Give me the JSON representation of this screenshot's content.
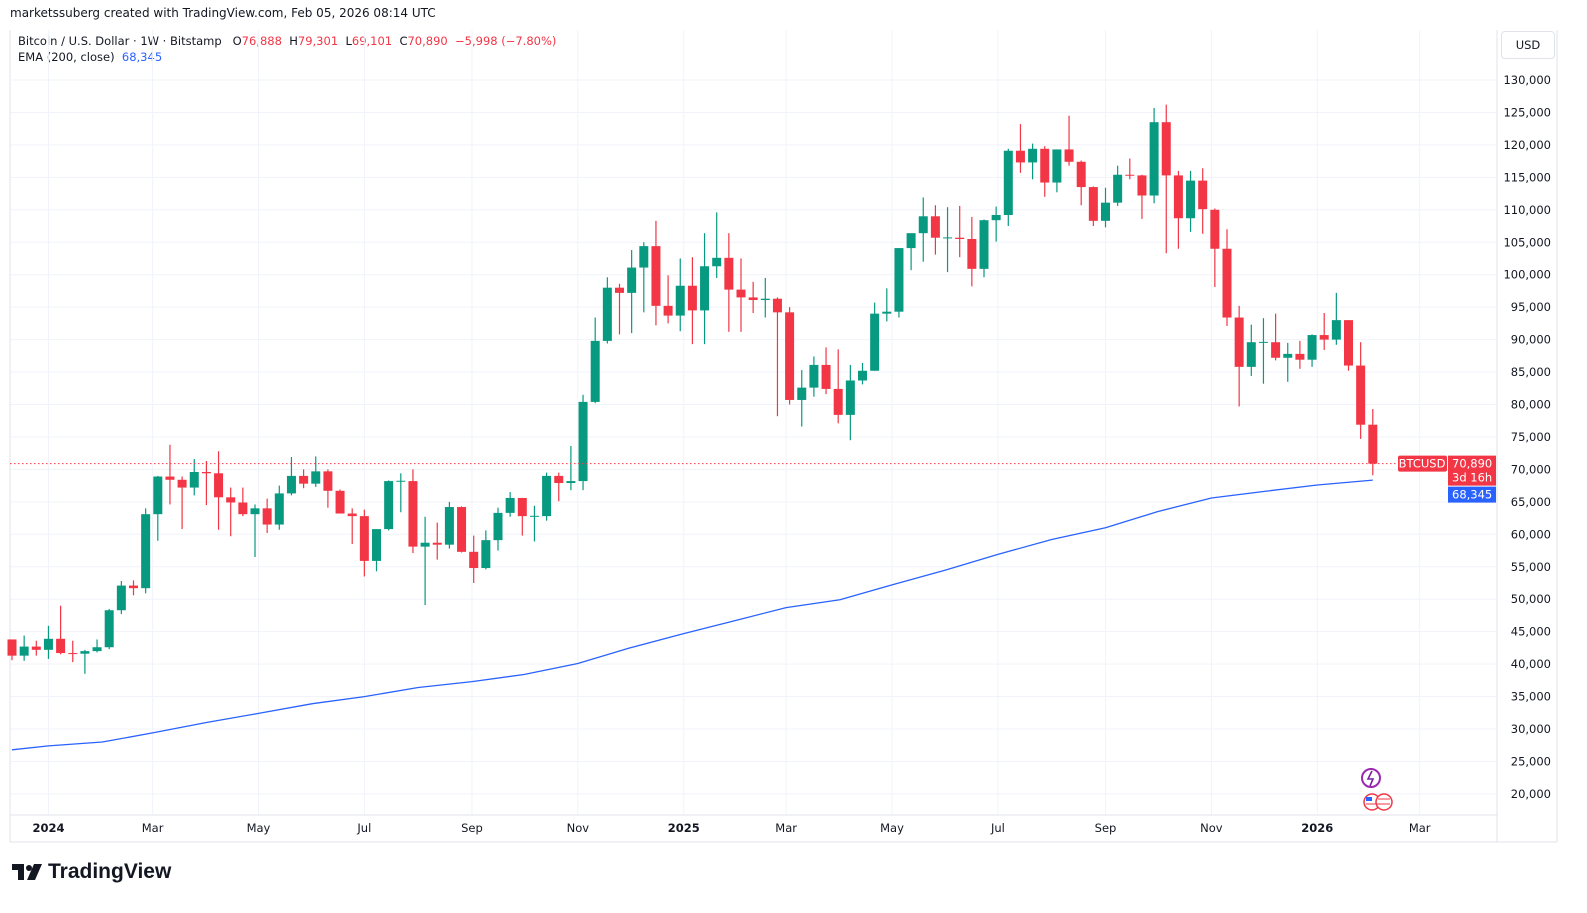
{
  "credit": "marketssuberg created with TradingView.com, Feb 05, 2026 08:14 UTC",
  "legend": {
    "symbol": "Bitcoin / U.S. Dollar · 1W · Bitstamp",
    "open_label": "O",
    "open": "76,888",
    "high_label": "H",
    "high": "79,301",
    "low_label": "L",
    "low": "69,101",
    "close_label": "C",
    "close": "70,890",
    "change": "−5,998 (−7.80%)",
    "indicator": "EMA (200, close)",
    "indicator_value": "68,345"
  },
  "currency_button": "USD",
  "price_tag": {
    "symbol": "BTCUSD",
    "price": "70,890",
    "countdown": "3d 16h"
  },
  "ema_tag": "68,345",
  "logo_text": "TradingView",
  "icons": [
    "sparkle-icon",
    "us-flag-icon"
  ],
  "colors": {
    "up": "#089981",
    "down": "#f23645",
    "ema": "#2962ff",
    "grid": "#f0f3fa"
  },
  "chart_data": {
    "type": "candlestick",
    "interval": "1W",
    "ylim": [
      17000,
      135000
    ],
    "yticks": [
      20000,
      25000,
      30000,
      35000,
      40000,
      45000,
      50000,
      55000,
      60000,
      65000,
      70000,
      75000,
      80000,
      85000,
      90000,
      95000,
      100000,
      105000,
      110000,
      115000,
      120000,
      125000,
      130000
    ],
    "ytick_labels": [
      "20,000",
      "25,000",
      "30,000",
      "35,000",
      "40,000",
      "45,000",
      "50,000",
      "55,000",
      "60,000",
      "65,000",
      "70,000",
      "75,000",
      "80,000",
      "85,000",
      "90,000",
      "95,000",
      "100,000",
      "105,000",
      "110,000",
      "115,000",
      "120,000",
      "125,000",
      "130,000"
    ],
    "xticks": [
      {
        "date": "2024-01-01",
        "label": "2024",
        "year": true
      },
      {
        "date": "2024-03-01",
        "label": "Mar"
      },
      {
        "date": "2024-05-01",
        "label": "May"
      },
      {
        "date": "2024-07-01",
        "label": "Jul"
      },
      {
        "date": "2024-09-01",
        "label": "Sep"
      },
      {
        "date": "2024-11-01",
        "label": "Nov"
      },
      {
        "date": "2025-01-01",
        "label": "2025",
        "year": true
      },
      {
        "date": "2025-03-01",
        "label": "Mar"
      },
      {
        "date": "2025-05-01",
        "label": "May"
      },
      {
        "date": "2025-07-01",
        "label": "Jul"
      },
      {
        "date": "2025-09-01",
        "label": "Sep"
      },
      {
        "date": "2025-11-01",
        "label": "Nov"
      },
      {
        "date": "2026-01-01",
        "label": "2026",
        "year": true
      },
      {
        "date": "2026-03-01",
        "label": "Mar"
      }
    ],
    "first_week": "2023-12-11",
    "ohlc": [
      [
        43800,
        43800,
        40600,
        41300
      ],
      [
        41300,
        44400,
        40500,
        42700
      ],
      [
        42700,
        43600,
        41300,
        42200
      ],
      [
        42200,
        45900,
        40800,
        43900
      ],
      [
        43900,
        49000,
        41500,
        41700
      ],
      [
        41700,
        43600,
        40300,
        41600
      ],
      [
        41600,
        42200,
        38500,
        42000
      ],
      [
        42000,
        43800,
        41800,
        42600
      ],
      [
        42600,
        48500,
        42300,
        48300
      ],
      [
        48300,
        52800,
        47700,
        52100
      ],
      [
        52100,
        52900,
        50600,
        51700
      ],
      [
        51700,
        64000,
        50900,
        63100
      ],
      [
        63100,
        69000,
        59000,
        68900
      ],
      [
        68900,
        73800,
        64600,
        68400
      ],
      [
        68400,
        68900,
        60800,
        67200
      ],
      [
        67200,
        71600,
        66000,
        69600
      ],
      [
        69600,
        71300,
        64500,
        69400
      ],
      [
        69400,
        72800,
        60700,
        65700
      ],
      [
        65700,
        67200,
        59700,
        64900
      ],
      [
        64900,
        67200,
        62800,
        63100
      ],
      [
        63100,
        64600,
        56500,
        64000
      ],
      [
        64000,
        65500,
        60200,
        61500
      ],
      [
        61500,
        67500,
        60700,
        66300
      ],
      [
        66300,
        71900,
        66000,
        69000
      ],
      [
        69000,
        70000,
        67100,
        67800
      ],
      [
        67800,
        72000,
        67300,
        69700
      ],
      [
        69700,
        70000,
        64100,
        66700
      ],
      [
        66700,
        66900,
        63400,
        63200
      ],
      [
        63200,
        64000,
        58500,
        62800
      ],
      [
        62800,
        63800,
        53500,
        55900
      ],
      [
        55900,
        60500,
        54300,
        60800
      ],
      [
        60800,
        68300,
        60600,
        68200
      ],
      [
        68200,
        69400,
        63400,
        68250
      ],
      [
        68200,
        70000,
        57100,
        58100
      ],
      [
        58100,
        62700,
        49100,
        58700
      ],
      [
        58700,
        61800,
        56100,
        58400
      ],
      [
        58400,
        65000,
        57800,
        64200
      ],
      [
        64200,
        64300,
        57200,
        57300
      ],
      [
        57300,
        59800,
        52500,
        54800
      ],
      [
        54800,
        60600,
        54600,
        59100
      ],
      [
        59100,
        64100,
        57500,
        63300
      ],
      [
        63300,
        66500,
        62700,
        65600
      ],
      [
        65600,
        65600,
        59800,
        62800
      ],
      [
        62800,
        64400,
        58900,
        62850
      ],
      [
        62800,
        69500,
        62100,
        69000
      ],
      [
        69000,
        69500,
        65100,
        67900
      ],
      [
        67900,
        73600,
        66800,
        68200
      ],
      [
        68200,
        81500,
        66800,
        80400
      ],
      [
        80400,
        93400,
        80200,
        89800
      ],
      [
        89800,
        99600,
        89400,
        98000
      ],
      [
        98000,
        98600,
        90800,
        97200
      ],
      [
        97200,
        103800,
        91000,
        101100
      ],
      [
        101100,
        105000,
        94200,
        104400
      ],
      [
        104400,
        108300,
        92200,
        95200
      ],
      [
        95200,
        99900,
        92500,
        93700
      ],
      [
        93700,
        102500,
        91300,
        98300
      ],
      [
        98300,
        102700,
        89300,
        94500
      ],
      [
        94500,
        106400,
        89300,
        101300
      ],
      [
        101300,
        109600,
        99500,
        102600
      ],
      [
        102600,
        106400,
        91200,
        97700
      ],
      [
        97700,
        102500,
        91200,
        96500
      ],
      [
        96500,
        98900,
        94100,
        96100
      ],
      [
        96100,
        99500,
        93400,
        96300
      ],
      [
        96300,
        96500,
        78200,
        94200
      ],
      [
        94200,
        95000,
        80000,
        80700
      ],
      [
        80700,
        85300,
        76600,
        82600
      ],
      [
        82600,
        87400,
        81200,
        86100
      ],
      [
        86100,
        88800,
        81600,
        82400
      ],
      [
        82400,
        88500,
        77100,
        78400
      ],
      [
        78400,
        86100,
        74500,
        83700
      ],
      [
        83700,
        86400,
        83100,
        85200
      ],
      [
        85200,
        95700,
        85200,
        94000
      ],
      [
        94000,
        97900,
        92800,
        94300
      ],
      [
        94300,
        104100,
        93400,
        104100
      ],
      [
        104100,
        105800,
        100700,
        106400
      ],
      [
        106400,
        111900,
        102000,
        109000
      ],
      [
        109000,
        110700,
        103100,
        105700
      ],
      [
        105700,
        110400,
        100400,
        105750
      ],
      [
        105700,
        110600,
        102700,
        105500
      ],
      [
        105500,
        108900,
        98200,
        100900
      ],
      [
        100900,
        108500,
        99600,
        108400
      ],
      [
        108400,
        110500,
        105100,
        109200
      ],
      [
        109200,
        119400,
        107500,
        119100
      ],
      [
        119100,
        123200,
        115700,
        117300
      ],
      [
        117300,
        120200,
        114700,
        119400
      ],
      [
        119400,
        119800,
        112000,
        114200
      ],
      [
        114200,
        119300,
        112700,
        119300
      ],
      [
        119300,
        124500,
        116800,
        117400
      ],
      [
        117400,
        117600,
        110700,
        113500
      ],
      [
        113500,
        113600,
        107500,
        108300
      ],
      [
        108300,
        113400,
        107300,
        111100
      ],
      [
        111100,
        116800,
        110600,
        115400
      ],
      [
        115400,
        117900,
        114700,
        115300
      ],
      [
        115300,
        115400,
        108600,
        112200
      ],
      [
        112200,
        125700,
        111000,
        123500
      ],
      [
        123500,
        126200,
        103300,
        115300
      ],
      [
        115300,
        116000,
        104000,
        108700
      ],
      [
        108700,
        116000,
        106600,
        114500
      ],
      [
        114500,
        116400,
        106300,
        110100
      ],
      [
        110000,
        110200,
        98100,
        104000
      ],
      [
        104000,
        107000,
        92100,
        93400
      ],
      [
        93400,
        95200,
        79700,
        85800
      ],
      [
        85800,
        92300,
        84400,
        89600
      ],
      [
        89600,
        93300,
        83200,
        89650
      ],
      [
        89600,
        94000,
        86800,
        87200
      ],
      [
        87200,
        89500,
        83500,
        87800
      ],
      [
        87800,
        89800,
        85500,
        86900
      ],
      [
        86900,
        90800,
        85800,
        90700
      ],
      [
        90700,
        94100,
        88400,
        90000
      ],
      [
        90000,
        97200,
        89200,
        93000
      ],
      [
        93000,
        93000,
        85200,
        86000
      ],
      [
        86000,
        89600,
        74700,
        76888
      ],
      [
        76888,
        79301,
        69101,
        70890
      ]
    ],
    "ema_200": [
      [
        "2023-12-11",
        26800
      ],
      [
        "2024-01-01",
        27400
      ],
      [
        "2024-02-01",
        28000
      ],
      [
        "2024-03-01",
        29400
      ],
      [
        "2024-04-01",
        31000
      ],
      [
        "2024-05-01",
        32400
      ],
      [
        "2024-06-01",
        33900
      ],
      [
        "2024-07-01",
        35000
      ],
      [
        "2024-08-01",
        36400
      ],
      [
        "2024-09-01",
        37300
      ],
      [
        "2024-10-01",
        38400
      ],
      [
        "2024-11-01",
        40100
      ],
      [
        "2024-12-01",
        42500
      ],
      [
        "2025-01-01",
        44700
      ],
      [
        "2025-02-01",
        46800
      ],
      [
        "2025-03-01",
        48700
      ],
      [
        "2025-04-01",
        49900
      ],
      [
        "2025-05-01",
        52200
      ],
      [
        "2025-06-01",
        54500
      ],
      [
        "2025-07-01",
        56900
      ],
      [
        "2025-08-01",
        59200
      ],
      [
        "2025-09-01",
        61000
      ],
      [
        "2025-10-01",
        63500
      ],
      [
        "2025-11-01",
        65600
      ],
      [
        "2025-12-01",
        66600
      ],
      [
        "2026-01-01",
        67600
      ],
      [
        "2026-02-02",
        68345
      ]
    ],
    "last_price": 70890,
    "grid": true
  }
}
